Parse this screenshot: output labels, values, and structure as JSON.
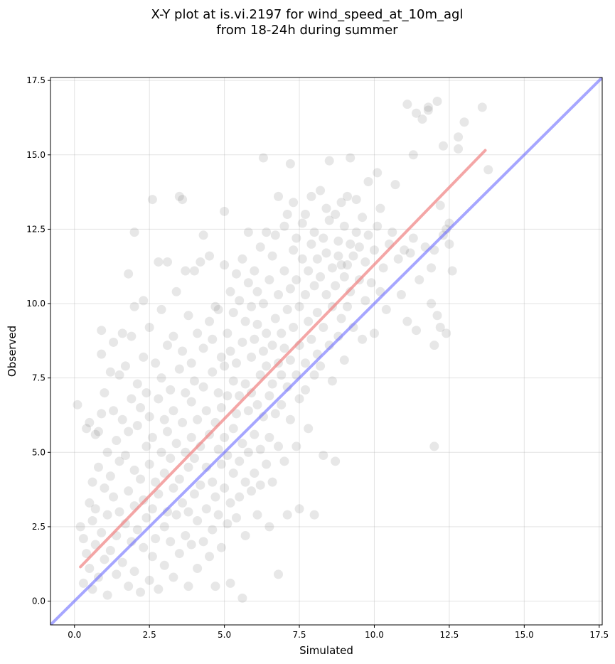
{
  "chart_data": {
    "type": "scatter",
    "title_lines": [
      "X-Y plot at is.vi.2197 for wind_speed_at_10m_agl",
      "from 18-24h during summer"
    ],
    "xlabel": "Simulated",
    "ylabel": "Observed",
    "xlim": [
      -0.8,
      17.6
    ],
    "ylim": [
      -0.8,
      17.6
    ],
    "xticks": [
      0.0,
      2.5,
      5.0,
      7.5,
      10.0,
      12.5,
      15.0,
      17.5
    ],
    "yticks": [
      0.0,
      2.5,
      5.0,
      7.5,
      10.0,
      12.5,
      15.0,
      17.5
    ],
    "xtick_labels": [
      "0.0",
      "2.5",
      "5.0",
      "7.5",
      "10.0",
      "12.5",
      "15.0",
      "17.5"
    ],
    "ytick_labels": [
      "0.0",
      "2.5",
      "5.0",
      "7.5",
      "10.0",
      "12.5",
      "15.0",
      "17.5"
    ],
    "grid": true,
    "point_color": "#555555",
    "fit_line": {
      "x": [
        0.2,
        13.7
      ],
      "y": [
        1.15,
        15.15
      ],
      "color": "#f08080"
    },
    "identity_line": {
      "x": [
        -0.8,
        17.6
      ],
      "y": [
        -0.8,
        17.6
      ],
      "color": "#6b6bff"
    },
    "points": [
      [
        0.1,
        6.6
      ],
      [
        0.2,
        2.5
      ],
      [
        0.3,
        2.1
      ],
      [
        0.3,
        0.6
      ],
      [
        0.4,
        1.6
      ],
      [
        0.4,
        5.8
      ],
      [
        0.5,
        3.3
      ],
      [
        0.5,
        6.0
      ],
      [
        0.5,
        1.1
      ],
      [
        0.6,
        2.7
      ],
      [
        0.6,
        4.0
      ],
      [
        0.6,
        0.4
      ],
      [
        0.7,
        5.6
      ],
      [
        0.7,
        3.1
      ],
      [
        0.7,
        1.9
      ],
      [
        0.8,
        4.5
      ],
      [
        0.8,
        0.8
      ],
      [
        0.8,
        5.7
      ],
      [
        0.9,
        6.3
      ],
      [
        0.9,
        2.3
      ],
      [
        0.9,
        8.3
      ],
      [
        0.9,
        9.1
      ],
      [
        1.0,
        3.8
      ],
      [
        1.0,
        1.4
      ],
      [
        1.0,
        7.0
      ],
      [
        1.1,
        5.0
      ],
      [
        1.1,
        2.9
      ],
      [
        1.1,
        0.2
      ],
      [
        1.2,
        7.7
      ],
      [
        1.2,
        4.2
      ],
      [
        1.2,
        1.7
      ],
      [
        1.3,
        6.4
      ],
      [
        1.3,
        3.5
      ],
      [
        1.3,
        8.7
      ],
      [
        1.4,
        2.2
      ],
      [
        1.4,
        5.4
      ],
      [
        1.4,
        0.9
      ],
      [
        1.5,
        4.7
      ],
      [
        1.5,
        7.6
      ],
      [
        1.5,
        3.0
      ],
      [
        1.6,
        1.3
      ],
      [
        1.6,
        6.1
      ],
      [
        1.6,
        9.0
      ],
      [
        1.7,
        2.6
      ],
      [
        1.7,
        4.9
      ],
      [
        1.7,
        7.9
      ],
      [
        1.8,
        0.5
      ],
      [
        1.8,
        3.7
      ],
      [
        1.8,
        5.7
      ],
      [
        1.8,
        11.0
      ],
      [
        1.9,
        2.0
      ],
      [
        1.9,
        6.8
      ],
      [
        1.9,
        8.9
      ],
      [
        2.0,
        4.4
      ],
      [
        2.0,
        1.0
      ],
      [
        2.0,
        3.2
      ],
      [
        2.0,
        9.9
      ],
      [
        2.0,
        12.4
      ],
      [
        2.1,
        5.9
      ],
      [
        2.1,
        7.3
      ],
      [
        2.1,
        2.4
      ],
      [
        2.2,
        4.1
      ],
      [
        2.2,
        0.3
      ],
      [
        2.2,
        6.5
      ],
      [
        2.3,
        3.4
      ],
      [
        2.3,
        8.2
      ],
      [
        2.3,
        1.8
      ],
      [
        2.3,
        10.1
      ],
      [
        2.4,
        5.2
      ],
      [
        2.4,
        2.8
      ],
      [
        2.4,
        7.0
      ],
      [
        2.5,
        4.6
      ],
      [
        2.5,
        0.7
      ],
      [
        2.5,
        6.2
      ],
      [
        2.5,
        9.2
      ],
      [
        2.6,
        3.1
      ],
      [
        2.6,
        5.5
      ],
      [
        2.6,
        13.5
      ],
      [
        2.6,
        1.5
      ],
      [
        2.7,
        8.0
      ],
      [
        2.7,
        4.0
      ],
      [
        2.7,
        2.1
      ],
      [
        2.8,
        6.8
      ],
      [
        2.8,
        3.6
      ],
      [
        2.8,
        11.4
      ],
      [
        2.8,
        0.4
      ],
      [
        2.9,
        5.0
      ],
      [
        2.9,
        7.5
      ],
      [
        2.9,
        9.8
      ],
      [
        3.0,
        2.5
      ],
      [
        3.0,
        4.3
      ],
      [
        3.0,
        6.1
      ],
      [
        3.0,
        1.2
      ],
      [
        3.1,
        8.6
      ],
      [
        3.1,
        3.0
      ],
      [
        3.1,
        5.7
      ],
      [
        3.1,
        11.4
      ],
      [
        3.2,
        2.0
      ],
      [
        3.2,
        7.1
      ],
      [
        3.2,
        4.8
      ],
      [
        3.3,
        8.9
      ],
      [
        3.3,
        0.8
      ],
      [
        3.3,
        3.8
      ],
      [
        3.3,
        6.4
      ],
      [
        3.4,
        10.4
      ],
      [
        3.4,
        2.9
      ],
      [
        3.4,
        5.3
      ],
      [
        3.5,
        13.6
      ],
      [
        3.5,
        7.8
      ],
      [
        3.5,
        4.1
      ],
      [
        3.5,
        1.6
      ],
      [
        3.6,
        6.0
      ],
      [
        3.6,
        3.3
      ],
      [
        3.6,
        13.5
      ],
      [
        3.6,
        8.4
      ],
      [
        3.7,
        2.2
      ],
      [
        3.7,
        5.0
      ],
      [
        3.7,
        11.1
      ],
      [
        3.7,
        7.0
      ],
      [
        3.8,
        4.5
      ],
      [
        3.8,
        0.5
      ],
      [
        3.8,
        9.6
      ],
      [
        3.8,
        3.0
      ],
      [
        3.9,
        6.7
      ],
      [
        3.9,
        5.5
      ],
      [
        3.9,
        1.9
      ],
      [
        3.9,
        8.0
      ],
      [
        4.0,
        11.1
      ],
      [
        4.0,
        3.6
      ],
      [
        4.0,
        7.4
      ],
      [
        4.0,
        4.8
      ],
      [
        4.1,
        2.7
      ],
      [
        4.1,
        6.1
      ],
      [
        4.1,
        9.0
      ],
      [
        4.1,
        1.1
      ],
      [
        4.2,
        5.2
      ],
      [
        4.2,
        3.9
      ],
      [
        4.2,
        11.4
      ],
      [
        4.3,
        7.2
      ],
      [
        4.3,
        12.3
      ],
      [
        4.3,
        2.0
      ],
      [
        4.3,
        8.5
      ],
      [
        4.4,
        4.5
      ],
      [
        4.4,
        6.4
      ],
      [
        4.4,
        3.1
      ],
      [
        4.5,
        9.4
      ],
      [
        4.5,
        5.6
      ],
      [
        4.5,
        11.6
      ],
      [
        4.5,
        1.5
      ],
      [
        4.6,
        7.7
      ],
      [
        4.6,
        4.0
      ],
      [
        4.6,
        2.4
      ],
      [
        4.6,
        8.8
      ],
      [
        4.7,
        6.0
      ],
      [
        4.7,
        9.9
      ],
      [
        4.7,
        3.5
      ],
      [
        4.7,
        0.5
      ],
      [
        4.8,
        5.1
      ],
      [
        4.8,
        7.0
      ],
      [
        4.8,
        2.9
      ],
      [
        4.8,
        9.8
      ],
      [
        4.9,
        4.6
      ],
      [
        4.9,
        8.2
      ],
      [
        4.9,
        6.5
      ],
      [
        4.9,
        1.8
      ],
      [
        5.0,
        13.1
      ],
      [
        5.0,
        3.8
      ],
      [
        5.0,
        5.5
      ],
      [
        5.0,
        7.9
      ],
      [
        5.0,
        11.3
      ],
      [
        5.1,
        2.6
      ],
      [
        5.1,
        9.0
      ],
      [
        5.1,
        4.9
      ],
      [
        5.1,
        6.9
      ],
      [
        5.2,
        8.4
      ],
      [
        5.2,
        3.3
      ],
      [
        5.2,
        10.4
      ],
      [
        5.2,
        0.6
      ],
      [
        5.3,
        5.8
      ],
      [
        5.3,
        7.4
      ],
      [
        5.3,
        4.3
      ],
      [
        5.3,
        9.7
      ],
      [
        5.4,
        6.3
      ],
      [
        5.4,
        2.8
      ],
      [
        5.4,
        11.0
      ],
      [
        5.4,
        8.0
      ],
      [
        5.5,
        4.7
      ],
      [
        5.5,
        10.1
      ],
      [
        5.5,
        3.5
      ],
      [
        5.5,
        6.9
      ],
      [
        5.6,
        8.7
      ],
      [
        5.6,
        5.3
      ],
      [
        5.6,
        11.5
      ],
      [
        5.6,
        0.1
      ],
      [
        5.7,
        7.3
      ],
      [
        5.7,
        4.0
      ],
      [
        5.7,
        9.4
      ],
      [
        5.7,
        2.2
      ],
      [
        5.8,
        10.7
      ],
      [
        5.8,
        6.4
      ],
      [
        5.8,
        12.4
      ],
      [
        5.8,
        5.0
      ],
      [
        5.9,
        8.2
      ],
      [
        5.9,
        3.7
      ],
      [
        5.9,
        9.9
      ],
      [
        5.9,
        7.0
      ],
      [
        6.0,
        11.1
      ],
      [
        6.0,
        5.6
      ],
      [
        6.0,
        4.3
      ],
      [
        6.0,
        8.8
      ],
      [
        6.1,
        10.4
      ],
      [
        6.1,
        6.6
      ],
      [
        6.1,
        2.9
      ],
      [
        6.1,
        9.3
      ],
      [
        6.2,
        7.6
      ],
      [
        6.2,
        5.1
      ],
      [
        6.2,
        11.9
      ],
      [
        6.2,
        3.9
      ],
      [
        6.3,
        8.4
      ],
      [
        6.3,
        14.9
      ],
      [
        6.3,
        6.2
      ],
      [
        6.3,
        10.0
      ],
      [
        6.4,
        4.6
      ],
      [
        6.4,
        7.9
      ],
      [
        6.4,
        9.0
      ],
      [
        6.4,
        12.4
      ],
      [
        6.5,
        6.9
      ],
      [
        6.5,
        5.5
      ],
      [
        6.5,
        2.5
      ],
      [
        6.5,
        10.8
      ],
      [
        6.6,
        8.6
      ],
      [
        6.6,
        7.3
      ],
      [
        6.6,
        4.0
      ],
      [
        6.6,
        11.6
      ],
      [
        6.7,
        9.5
      ],
      [
        6.7,
        6.3
      ],
      [
        6.7,
        12.3
      ],
      [
        6.8,
        8.0
      ],
      [
        6.8,
        5.2
      ],
      [
        6.8,
        10.3
      ],
      [
        6.8,
        13.6
      ],
      [
        6.8,
        0.9
      ],
      [
        6.9,
        7.6
      ],
      [
        6.9,
        9.0
      ],
      [
        6.9,
        6.6
      ],
      [
        7.0,
        11.1
      ],
      [
        7.0,
        8.5
      ],
      [
        7.0,
        4.7
      ],
      [
        7.0,
        12.6
      ],
      [
        7.1,
        9.8
      ],
      [
        7.1,
        7.2
      ],
      [
        7.1,
        13.0
      ],
      [
        7.1,
        2.9
      ],
      [
        7.2,
        10.5
      ],
      [
        7.2,
        8.1
      ],
      [
        7.2,
        14.7
      ],
      [
        7.2,
        6.1
      ],
      [
        7.3,
        11.8
      ],
      [
        7.3,
        9.2
      ],
      [
        7.3,
        13.4
      ],
      [
        7.4,
        7.6
      ],
      [
        7.4,
        10.8
      ],
      [
        7.4,
        5.2
      ],
      [
        7.4,
        12.2
      ],
      [
        7.5,
        8.6
      ],
      [
        7.5,
        9.9
      ],
      [
        7.5,
        6.8
      ],
      [
        7.5,
        3.1
      ],
      [
        7.6,
        11.5
      ],
      [
        7.6,
        12.7
      ],
      [
        7.7,
        8.0
      ],
      [
        7.7,
        10.3
      ],
      [
        7.7,
        7.1
      ],
      [
        7.7,
        13.0
      ],
      [
        7.8,
        9.4
      ],
      [
        7.8,
        11.1
      ],
      [
        7.8,
        5.8
      ],
      [
        7.9,
        12.0
      ],
      [
        7.9,
        8.8
      ],
      [
        7.9,
        13.6
      ],
      [
        8.0,
        10.6
      ],
      [
        8.0,
        7.6
      ],
      [
        8.0,
        12.4
      ],
      [
        8.0,
        2.9
      ],
      [
        8.1,
        9.7
      ],
      [
        8.1,
        11.5
      ],
      [
        8.1,
        8.3
      ],
      [
        8.2,
        13.8
      ],
      [
        8.2,
        10.9
      ],
      [
        8.2,
        7.9
      ],
      [
        8.3,
        12.2
      ],
      [
        8.3,
        9.2
      ],
      [
        8.3,
        4.9
      ],
      [
        8.4,
        13.2
      ],
      [
        8.4,
        10.3
      ],
      [
        8.4,
        11.7
      ],
      [
        8.5,
        8.6
      ],
      [
        8.5,
        14.8
      ],
      [
        8.5,
        12.8
      ],
      [
        8.6,
        9.9
      ],
      [
        8.6,
        7.4
      ],
      [
        8.6,
        11.2
      ],
      [
        8.7,
        13.0
      ],
      [
        8.7,
        10.6
      ],
      [
        8.7,
        4.7
      ],
      [
        8.8,
        12.1
      ],
      [
        8.8,
        8.9
      ],
      [
        8.8,
        11.6
      ],
      [
        8.9,
        9.5
      ],
      [
        8.9,
        13.4
      ],
      [
        9.0,
        10.9
      ],
      [
        9.0,
        12.6
      ],
      [
        9.0,
        8.1
      ],
      [
        9.1,
        11.3
      ],
      [
        9.1,
        13.6
      ],
      [
        9.1,
        9.9
      ],
      [
        9.2,
        14.9
      ],
      [
        9.2,
        12.0
      ],
      [
        9.2,
        10.4
      ],
      [
        9.3,
        11.6
      ],
      [
        9.3,
        9.2
      ],
      [
        9.4,
        13.5
      ],
      [
        9.4,
        12.4
      ],
      [
        9.5,
        10.8
      ],
      [
        9.5,
        11.9
      ],
      [
        9.6,
        8.8
      ],
      [
        9.6,
        12.9
      ],
      [
        9.7,
        10.1
      ],
      [
        9.7,
        11.4
      ],
      [
        9.8,
        14.1
      ],
      [
        9.8,
        12.3
      ],
      [
        9.9,
        10.7
      ],
      [
        10.0,
        9.0
      ],
      [
        10.0,
        11.8
      ],
      [
        10.1,
        14.4
      ],
      [
        10.1,
        12.6
      ],
      [
        10.2,
        13.2
      ],
      [
        10.2,
        10.4
      ],
      [
        10.3,
        11.2
      ],
      [
        10.4,
        9.8
      ],
      [
        10.5,
        12.0
      ],
      [
        10.6,
        12.4
      ],
      [
        10.7,
        14.0
      ],
      [
        10.8,
        11.5
      ],
      [
        10.9,
        10.3
      ],
      [
        11.0,
        11.8
      ],
      [
        11.1,
        16.7
      ],
      [
        11.1,
        9.4
      ],
      [
        11.2,
        11.7
      ],
      [
        11.3,
        15.0
      ],
      [
        11.3,
        12.2
      ],
      [
        11.4,
        16.4
      ],
      [
        11.4,
        9.1
      ],
      [
        11.5,
        10.8
      ],
      [
        11.6,
        16.2
      ],
      [
        11.7,
        11.9
      ],
      [
        11.8,
        16.5
      ],
      [
        11.8,
        16.6
      ],
      [
        11.9,
        10.0
      ],
      [
        11.9,
        11.2
      ],
      [
        12.0,
        8.6
      ],
      [
        12.0,
        5.2
      ],
      [
        12.0,
        11.8
      ],
      [
        12.1,
        16.8
      ],
      [
        12.1,
        9.6
      ],
      [
        12.2,
        13.3
      ],
      [
        12.2,
        9.2
      ],
      [
        12.3,
        15.3
      ],
      [
        12.3,
        12.3
      ],
      [
        12.4,
        12.5
      ],
      [
        12.4,
        9.0
      ],
      [
        12.5,
        12.7
      ],
      [
        12.6,
        11.1
      ],
      [
        12.8,
        15.6
      ],
      [
        12.8,
        15.2
      ],
      [
        13.0,
        16.1
      ],
      [
        13.6,
        16.6
      ],
      [
        13.8,
        14.5
      ],
      [
        12.5,
        12.0
      ],
      [
        8.9,
        11.3
      ]
    ]
  }
}
